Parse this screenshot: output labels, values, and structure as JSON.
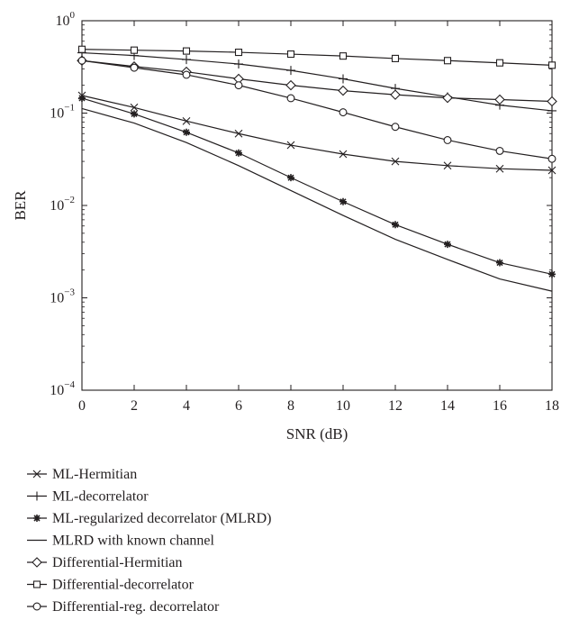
{
  "chart_data": {
    "type": "line",
    "title": "",
    "xlabel": "SNR (dB)",
    "ylabel": "BER",
    "xlim": [
      0,
      18
    ],
    "ylim": [
      0.0001,
      1
    ],
    "yscale": "log",
    "grid": false,
    "legend_position": "below",
    "x_ticks": [
      "0",
      "2",
      "4",
      "6",
      "8",
      "10",
      "12",
      "14",
      "16",
      "18"
    ],
    "y_ticks": [
      {
        "base": "10",
        "exp": "0"
      },
      {
        "base": "10",
        "exp": "−1"
      },
      {
        "base": "10",
        "exp": "−2"
      },
      {
        "base": "10",
        "exp": "−3"
      },
      {
        "base": "10",
        "exp": "−4"
      }
    ],
    "x": [
      0,
      2,
      4,
      6,
      8,
      10,
      12,
      14,
      16,
      18
    ],
    "series": [
      {
        "name": "ML-Hermitian",
        "marker": "x",
        "values": [
          0.155,
          0.115,
          0.082,
          0.06,
          0.045,
          0.036,
          0.03,
          0.027,
          0.025,
          0.024
        ]
      },
      {
        "name": "ML-decorrelator",
        "marker": "plus",
        "values": [
          0.45,
          0.42,
          0.38,
          0.34,
          0.29,
          0.235,
          0.185,
          0.15,
          0.122,
          0.106
        ]
      },
      {
        "name": "ML-regularized decorrelator (MLRD)",
        "marker": "star",
        "values": [
          0.145,
          0.098,
          0.062,
          0.037,
          0.02,
          0.011,
          0.0062,
          0.0038,
          0.0024,
          0.0018
        ]
      },
      {
        "name": "MLRD with known channel",
        "marker": "none",
        "values": [
          0.112,
          0.078,
          0.048,
          0.027,
          0.0145,
          0.0078,
          0.0043,
          0.0026,
          0.0016,
          0.00118
        ]
      },
      {
        "name": "Differential-Hermitian",
        "marker": "diamond",
        "values": [
          0.37,
          0.32,
          0.28,
          0.235,
          0.2,
          0.175,
          0.158,
          0.146,
          0.14,
          0.134
        ]
      },
      {
        "name": "Differential-decorrelator",
        "marker": "square",
        "values": [
          0.49,
          0.48,
          0.47,
          0.455,
          0.435,
          0.415,
          0.39,
          0.37,
          0.35,
          0.33
        ]
      },
      {
        "name": "Differential-reg. decorrelator",
        "marker": "circle",
        "values": [
          0.37,
          0.31,
          0.26,
          0.2,
          0.145,
          0.102,
          0.071,
          0.051,
          0.039,
          0.032
        ]
      }
    ]
  }
}
